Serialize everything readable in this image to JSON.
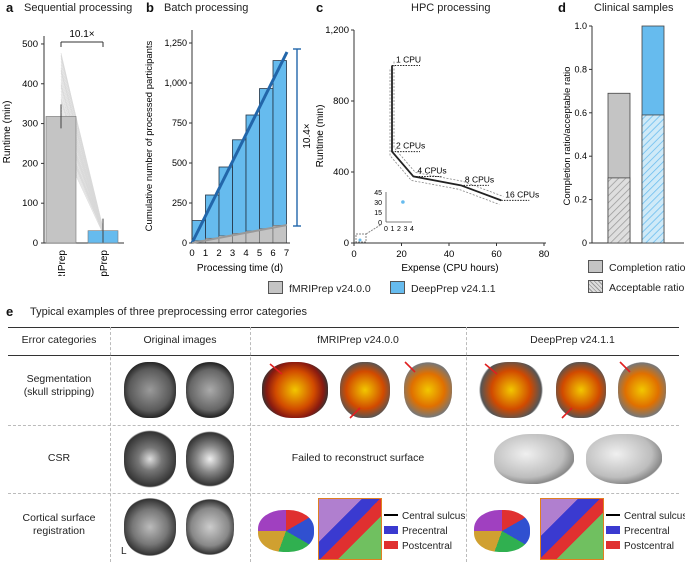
{
  "panel_a": {
    "label": "a",
    "title": "Sequential processing",
    "annotation": "10.1×",
    "chart_data": {
      "type": "bar",
      "categories": [
        "fMRIPrep",
        "DeepPrep"
      ],
      "values": [
        318,
        31
      ],
      "ylabel": "Runtime (min)",
      "yticks": [
        "0",
        "100",
        "200",
        "300",
        "400",
        "500"
      ],
      "ylim": [
        0,
        520
      ],
      "colors": [
        "#c4c4c4",
        "#66bbee"
      ]
    }
  },
  "panel_b": {
    "label": "b",
    "title": "Batch processing",
    "annotation": "10.4×",
    "chart_data": {
      "type": "bar",
      "categories": [
        "1",
        "2",
        "3",
        "4",
        "5",
        "6",
        "7"
      ],
      "series": [
        {
          "name": "DeepPrep v24.1.1",
          "values": [
            140,
            300,
            475,
            645,
            800,
            965,
            1140
          ]
        },
        {
          "name": "fMRIPrep v24.0.0",
          "values": [
            15,
            30,
            45,
            60,
            75,
            90,
            110
          ]
        }
      ],
      "xlabel": "Processing time (d)",
      "ylabel": "Cumulative number of processed participants",
      "xticks": [
        "0",
        "1",
        "2",
        "3",
        "4",
        "5",
        "6",
        "7"
      ],
      "yticks": [
        "0",
        "250",
        "500",
        "750",
        "1,000",
        "1,250"
      ],
      "ylim": [
        0,
        1250
      ]
    }
  },
  "panel_c": {
    "label": "c",
    "title": "HPC processing",
    "chart_data": {
      "type": "line",
      "series": [
        {
          "name": "fMRIPrep v24.0.0",
          "x": [
            16,
            16,
            25,
            45,
            62
          ],
          "y": [
            1000,
            515,
            375,
            325,
            240
          ]
        }
      ],
      "xlabel": "Expense (CPU hours)",
      "ylabel": "Runtime (min)",
      "xticks": [
        "0",
        "20",
        "40",
        "60",
        "80"
      ],
      "yticks": [
        "0",
        "400",
        "800",
        "1,200"
      ],
      "xlim": [
        0,
        80
      ],
      "ylim": [
        0,
        1200
      ],
      "annotations": [
        "1 CPU",
        "2 CPUs",
        "4 CPUs",
        "8 CPUs",
        "16 CPUs"
      ],
      "inset": {
        "xticks": [
          "0",
          "1",
          "2",
          "3",
          "4"
        ],
        "yticks": [
          "0",
          "15",
          "30",
          "45"
        ],
        "point": [
          2.6,
          30
        ]
      }
    }
  },
  "panel_d": {
    "label": "d",
    "title": "Clinical samples",
    "chart_data": {
      "type": "bar",
      "categories": [
        "fMRIPrep v24.0.0",
        "DeepPrep v24.1.1"
      ],
      "series": [
        {
          "name": "Completion ratio",
          "values": [
            0.69,
            1.0
          ]
        },
        {
          "name": "Acceptable ratio",
          "values": [
            0.3,
            0.59
          ]
        }
      ],
      "ylabel": "Completion ratio/acceptable ratio",
      "yticks": [
        "0",
        "0.2",
        "0.4",
        "0.6",
        "0.8",
        "1.0"
      ],
      "ylim": [
        0,
        1.0
      ]
    },
    "legend": [
      "Completion ratio",
      "Acceptable ratio"
    ]
  },
  "legend": {
    "fmriprep": "fMRIPrep v24.0.0",
    "deepprep": "DeepPrep v24.1.1",
    "color_fmriprep": "#c4c4c4",
    "color_deepprep": "#66bbee"
  },
  "panel_e": {
    "label": "e",
    "title": "Typical examples of three preprocessing error categories",
    "headers": [
      "Error categories",
      "Original images",
      "fMRIPrep v24.0.0",
      "DeepPrep v24.1.1"
    ],
    "rows": [
      {
        "category": "Segmentation\n(skull stripping)"
      },
      {
        "category": "CSR",
        "fmriprep_text": "Failed to reconstruct surface"
      },
      {
        "category": "Cortical surface\nregistration",
        "orient": "L"
      }
    ],
    "region_legend": [
      "Central sulcus",
      "Precentral",
      "Postcentral"
    ]
  }
}
